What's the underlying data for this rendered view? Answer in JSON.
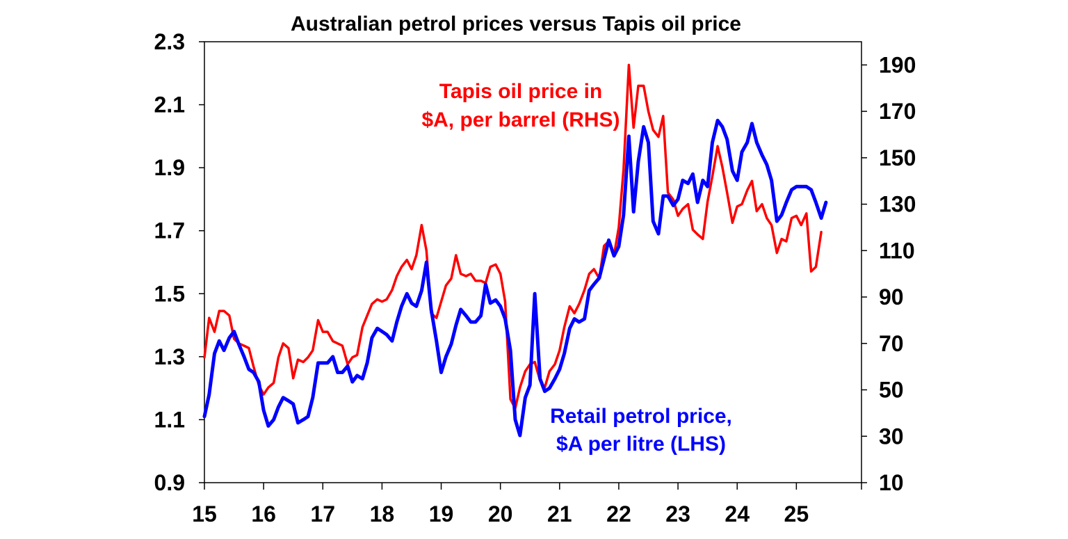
{
  "chart_data": {
    "type": "line",
    "title": "Australian petrol prices versus Tapis oil price",
    "x_ticks": [
      "15",
      "16",
      "17",
      "18",
      "19",
      "20",
      "21",
      "22",
      "23",
      "24",
      "25"
    ],
    "xlim": [
      15,
      26.1
    ],
    "ylim_left": [
      0.9,
      2.3
    ],
    "y_ticks_left": [
      "2.3",
      "2.1",
      "1.9",
      "1.7",
      "1.5",
      "1.3",
      "1.1",
      "0.9"
    ],
    "ylim_right": [
      10,
      200
    ],
    "y_ticks_right": [
      "190",
      "170",
      "150",
      "130",
      "110",
      "90",
      "70",
      "50",
      "30",
      "10"
    ],
    "grid": false,
    "annotations": {
      "tapis_line1": "Tapis oil price in",
      "tapis_line2": "$A, per barrel (RHS)",
      "retail_line1": "Retail petrol price,",
      "retail_line2": "$A per litre (LHS)"
    },
    "series": [
      {
        "name": "Retail petrol price, $A per litre (LHS)",
        "axis": "left",
        "color": "#0000ff",
        "points": [
          [
            15.0,
            1.11
          ],
          [
            15.08,
            1.18
          ],
          [
            15.17,
            1.31
          ],
          [
            15.25,
            1.35
          ],
          [
            15.33,
            1.32
          ],
          [
            15.42,
            1.36
          ],
          [
            15.5,
            1.38
          ],
          [
            15.58,
            1.34
          ],
          [
            15.67,
            1.3
          ],
          [
            15.75,
            1.26
          ],
          [
            15.83,
            1.25
          ],
          [
            15.92,
            1.22
          ],
          [
            16.0,
            1.13
          ],
          [
            16.08,
            1.08
          ],
          [
            16.17,
            1.1
          ],
          [
            16.25,
            1.14
          ],
          [
            16.33,
            1.17
          ],
          [
            16.42,
            1.16
          ],
          [
            16.5,
            1.15
          ],
          [
            16.58,
            1.09
          ],
          [
            16.67,
            1.1
          ],
          [
            16.75,
            1.11
          ],
          [
            16.83,
            1.17
          ],
          [
            16.92,
            1.28
          ],
          [
            17.0,
            1.28
          ],
          [
            17.08,
            1.28
          ],
          [
            17.17,
            1.3
          ],
          [
            17.25,
            1.25
          ],
          [
            17.33,
            1.25
          ],
          [
            17.42,
            1.27
          ],
          [
            17.5,
            1.22
          ],
          [
            17.58,
            1.24
          ],
          [
            17.67,
            1.23
          ],
          [
            17.75,
            1.28
          ],
          [
            17.83,
            1.36
          ],
          [
            17.92,
            1.39
          ],
          [
            18.0,
            1.38
          ],
          [
            18.08,
            1.37
          ],
          [
            18.17,
            1.35
          ],
          [
            18.25,
            1.41
          ],
          [
            18.33,
            1.46
          ],
          [
            18.42,
            1.5
          ],
          [
            18.5,
            1.47
          ],
          [
            18.58,
            1.46
          ],
          [
            18.67,
            1.51
          ],
          [
            18.75,
            1.6
          ],
          [
            18.83,
            1.45
          ],
          [
            18.92,
            1.35
          ],
          [
            19.0,
            1.25
          ],
          [
            19.08,
            1.3
          ],
          [
            19.17,
            1.34
          ],
          [
            19.25,
            1.4
          ],
          [
            19.33,
            1.45
          ],
          [
            19.42,
            1.43
          ],
          [
            19.5,
            1.41
          ],
          [
            19.58,
            1.41
          ],
          [
            19.67,
            1.43
          ],
          [
            19.75,
            1.53
          ],
          [
            19.83,
            1.47
          ],
          [
            19.92,
            1.48
          ],
          [
            20.0,
            1.46
          ],
          [
            20.08,
            1.42
          ],
          [
            20.17,
            1.32
          ],
          [
            20.25,
            1.1
          ],
          [
            20.33,
            1.05
          ],
          [
            20.42,
            1.17
          ],
          [
            20.5,
            1.21
          ],
          [
            20.58,
            1.5
          ],
          [
            20.67,
            1.23
          ],
          [
            20.75,
            1.19
          ],
          [
            20.83,
            1.2
          ],
          [
            20.92,
            1.23
          ],
          [
            21.0,
            1.26
          ],
          [
            21.08,
            1.31
          ],
          [
            21.17,
            1.39
          ],
          [
            21.25,
            1.42
          ],
          [
            21.33,
            1.41
          ],
          [
            21.42,
            1.42
          ],
          [
            21.5,
            1.51
          ],
          [
            21.58,
            1.53
          ],
          [
            21.67,
            1.55
          ],
          [
            21.75,
            1.61
          ],
          [
            21.83,
            1.67
          ],
          [
            21.92,
            1.62
          ],
          [
            22.0,
            1.65
          ],
          [
            22.08,
            1.75
          ],
          [
            22.17,
            2.0
          ],
          [
            22.25,
            1.76
          ],
          [
            22.33,
            1.92
          ],
          [
            22.42,
            2.03
          ],
          [
            22.5,
            1.98
          ],
          [
            22.58,
            1.73
          ],
          [
            22.67,
            1.69
          ],
          [
            22.75,
            1.81
          ],
          [
            22.83,
            1.81
          ],
          [
            22.92,
            1.78
          ],
          [
            23.0,
            1.8
          ],
          [
            23.08,
            1.86
          ],
          [
            23.17,
            1.85
          ],
          [
            23.25,
            1.88
          ],
          [
            23.33,
            1.79
          ],
          [
            23.42,
            1.86
          ],
          [
            23.5,
            1.84
          ],
          [
            23.58,
            1.98
          ],
          [
            23.67,
            2.05
          ],
          [
            23.75,
            2.03
          ],
          [
            23.83,
            1.99
          ],
          [
            23.92,
            1.89
          ],
          [
            24.0,
            1.86
          ],
          [
            24.08,
            1.95
          ],
          [
            24.17,
            1.98
          ],
          [
            24.25,
            2.04
          ],
          [
            24.33,
            1.98
          ],
          [
            24.42,
            1.94
          ],
          [
            24.5,
            1.91
          ],
          [
            24.58,
            1.86
          ],
          [
            24.67,
            1.73
          ],
          [
            24.75,
            1.75
          ],
          [
            24.83,
            1.79
          ],
          [
            24.92,
            1.83
          ],
          [
            25.0,
            1.84
          ],
          [
            25.08,
            1.84
          ],
          [
            25.17,
            1.84
          ],
          [
            25.25,
            1.83
          ],
          [
            25.33,
            1.79
          ],
          [
            25.42,
            1.74
          ],
          [
            25.5,
            1.79
          ]
        ]
      },
      {
        "name": "Tapis oil price in $A, per barrel (RHS)",
        "axis": "right",
        "color": "#ff0000",
        "points": [
          [
            15.0,
            64
          ],
          [
            15.08,
            81
          ],
          [
            15.17,
            75
          ],
          [
            15.25,
            84
          ],
          [
            15.33,
            84
          ],
          [
            15.42,
            82
          ],
          [
            15.5,
            72
          ],
          [
            15.58,
            70
          ],
          [
            15.67,
            69
          ],
          [
            15.75,
            68
          ],
          [
            15.83,
            60
          ],
          [
            15.92,
            52
          ],
          [
            16.0,
            48
          ],
          [
            16.08,
            51
          ],
          [
            16.17,
            53
          ],
          [
            16.25,
            64
          ],
          [
            16.33,
            70
          ],
          [
            16.42,
            68
          ],
          [
            16.5,
            55
          ],
          [
            16.58,
            63
          ],
          [
            16.67,
            62
          ],
          [
            16.75,
            64
          ],
          [
            16.83,
            67
          ],
          [
            16.92,
            80
          ],
          [
            17.0,
            75
          ],
          [
            17.08,
            75
          ],
          [
            17.17,
            71
          ],
          [
            17.25,
            70
          ],
          [
            17.33,
            69
          ],
          [
            17.42,
            61
          ],
          [
            17.5,
            64
          ],
          [
            17.58,
            65
          ],
          [
            17.67,
            77
          ],
          [
            17.75,
            82
          ],
          [
            17.83,
            87
          ],
          [
            17.92,
            89
          ],
          [
            18.0,
            88
          ],
          [
            18.08,
            89
          ],
          [
            18.17,
            93
          ],
          [
            18.25,
            99
          ],
          [
            18.33,
            103
          ],
          [
            18.42,
            106
          ],
          [
            18.5,
            102
          ],
          [
            18.58,
            108
          ],
          [
            18.67,
            121
          ],
          [
            18.75,
            110
          ],
          [
            18.83,
            83
          ],
          [
            18.92,
            81
          ],
          [
            19.0,
            88
          ],
          [
            19.08,
            95
          ],
          [
            19.17,
            98
          ],
          [
            19.25,
            108
          ],
          [
            19.33,
            100
          ],
          [
            19.42,
            99
          ],
          [
            19.5,
            100
          ],
          [
            19.58,
            97
          ],
          [
            19.67,
            97
          ],
          [
            19.75,
            96
          ],
          [
            19.83,
            103
          ],
          [
            19.92,
            104
          ],
          [
            20.0,
            100
          ],
          [
            20.08,
            88
          ],
          [
            20.17,
            46
          ],
          [
            20.25,
            42
          ],
          [
            20.33,
            51
          ],
          [
            20.42,
            58
          ],
          [
            20.5,
            61
          ],
          [
            20.58,
            62
          ],
          [
            20.67,
            54
          ],
          [
            20.75,
            51
          ],
          [
            20.83,
            58
          ],
          [
            20.92,
            61
          ],
          [
            21.0,
            67
          ],
          [
            21.08,
            77
          ],
          [
            21.17,
            86
          ],
          [
            21.25,
            83
          ],
          [
            21.33,
            87
          ],
          [
            21.42,
            93
          ],
          [
            21.5,
            100
          ],
          [
            21.58,
            102
          ],
          [
            21.67,
            98
          ],
          [
            21.75,
            112
          ],
          [
            21.83,
            114
          ],
          [
            21.92,
            108
          ],
          [
            22.0,
            120
          ],
          [
            22.08,
            145
          ],
          [
            22.17,
            190
          ],
          [
            22.25,
            163
          ],
          [
            22.33,
            181
          ],
          [
            22.42,
            181
          ],
          [
            22.5,
            170
          ],
          [
            22.58,
            162
          ],
          [
            22.67,
            159
          ],
          [
            22.75,
            168
          ],
          [
            22.83,
            135
          ],
          [
            22.92,
            132
          ],
          [
            23.0,
            125
          ],
          [
            23.08,
            128
          ],
          [
            23.17,
            130
          ],
          [
            23.25,
            119
          ],
          [
            23.33,
            117
          ],
          [
            23.42,
            115
          ],
          [
            23.5,
            131
          ],
          [
            23.58,
            142
          ],
          [
            23.67,
            155
          ],
          [
            23.75,
            146
          ],
          [
            23.83,
            135
          ],
          [
            23.92,
            122
          ],
          [
            24.0,
            129
          ],
          [
            24.08,
            130
          ],
          [
            24.17,
            136
          ],
          [
            24.25,
            140
          ],
          [
            24.33,
            127
          ],
          [
            24.42,
            130
          ],
          [
            24.5,
            124
          ],
          [
            24.58,
            121
          ],
          [
            24.67,
            109
          ],
          [
            24.75,
            115
          ],
          [
            24.83,
            114
          ],
          [
            24.92,
            124
          ],
          [
            25.0,
            125
          ],
          [
            25.08,
            121
          ],
          [
            25.17,
            126
          ],
          [
            25.25,
            101
          ],
          [
            25.33,
            103
          ],
          [
            25.42,
            118
          ]
        ]
      }
    ]
  }
}
